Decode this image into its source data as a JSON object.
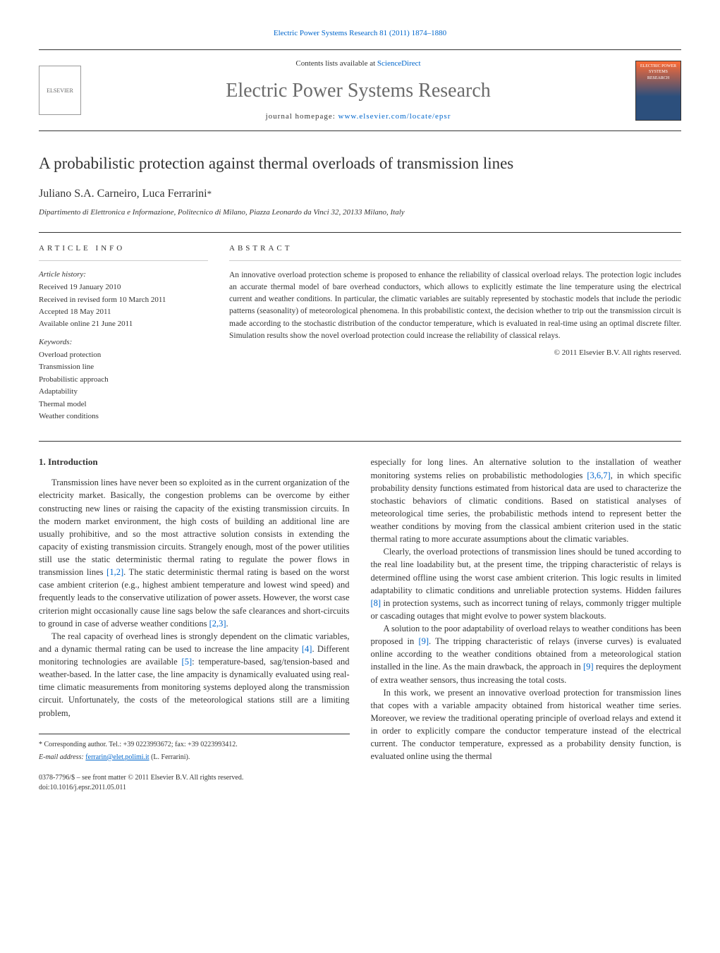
{
  "header": {
    "top_link": "Electric Power Systems Research 81 (2011) 1874–1880",
    "contents_prefix": "Contents lists available at ",
    "contents_link": "ScienceDirect",
    "journal_name": "Electric Power Systems Research",
    "homepage_prefix": "journal homepage: ",
    "homepage_link": "www.elsevier.com/locate/epsr",
    "elsevier_label": "ELSEVIER",
    "cover_label": "ELECTRIC POWER SYSTEMS RESEARCH"
  },
  "article": {
    "title": "A probabilistic protection against thermal overloads of transmission lines",
    "authors": "Juliano S.A. Carneiro, Luca Ferrarini",
    "author_marker": "*",
    "affiliation": "Dipartimento di Elettronica e Informazione, Politecnico di Milano, Piazza Leonardo da Vinci 32, 20133 Milano, Italy"
  },
  "info": {
    "heading": "ARTICLE INFO",
    "history_label": "Article history:",
    "received": "Received 19 January 2010",
    "revised": "Received in revised form 10 March 2011",
    "accepted": "Accepted 18 May 2011",
    "online": "Available online 21 June 2011",
    "keywords_label": "Keywords:",
    "kw1": "Overload protection",
    "kw2": "Transmission line",
    "kw3": "Probabilistic approach",
    "kw4": "Adaptability",
    "kw5": "Thermal model",
    "kw6": "Weather conditions"
  },
  "abstract": {
    "heading": "ABSTRACT",
    "text": "An innovative overload protection scheme is proposed to enhance the reliability of classical overload relays. The protection logic includes an accurate thermal model of bare overhead conductors, which allows to explicitly estimate the line temperature using the electrical current and weather conditions. In particular, the climatic variables are suitably represented by stochastic models that include the periodic patterns (seasonality) of meteorological phenomena. In this probabilistic context, the decision whether to trip out the transmission circuit is made according to the stochastic distribution of the conductor temperature, which is evaluated in real-time using an optimal discrete filter. Simulation results show the novel overload protection could increase the reliability of classical relays.",
    "copyright": "© 2011 Elsevier B.V. All rights reserved."
  },
  "body": {
    "section1_heading": "1. Introduction",
    "col1_p1": "Transmission lines have never been so exploited as in the current organization of the electricity market. Basically, the congestion problems can be overcome by either constructing new lines or raising the capacity of the existing transmission circuits. In the modern market environment, the high costs of building an additional line are usually prohibitive, and so the most attractive solution consists in extending the capacity of existing transmission circuits. Strangely enough, most of the power utilities still use the static deterministic thermal rating to regulate the power flows in transmission lines ",
    "col1_cite1": "[1,2]",
    "col1_p1b": ". The static deterministic thermal rating is based on the worst case ambient criterion (e.g., highest ambient temperature and lowest wind speed) and frequently leads to the conservative utilization of power assets. However, the worst case criterion might occasionally cause line sags below the safe clearances and short-circuits to ground in case of adverse weather conditions ",
    "col1_cite2": "[2,3]",
    "col1_p1c": ".",
    "col1_p2": "The real capacity of overhead lines is strongly dependent on the climatic variables, and a dynamic thermal rating can be used to increase the line ampacity ",
    "col1_cite3": "[4]",
    "col1_p2b": ". Different monitoring technologies are available ",
    "col1_cite4": "[5]",
    "col1_p2c": ": temperature-based, sag/tension-based and weather-based. In the latter case, the line ampacity is dynamically evaluated using real-time climatic measurements from monitoring systems deployed along the transmission circuit. Unfortunately, the costs of the meteorological stations still are a limiting problem,",
    "col2_p1": "especially for long lines. An alternative solution to the installation of weather monitoring systems relies on probabilistic methodologies ",
    "col2_cite1": "[3,6,7]",
    "col2_p1b": ", in which specific probability density functions estimated from historical data are used to characterize the stochastic behaviors of climatic conditions. Based on statistical analyses of meteorological time series, the probabilistic methods intend to represent better the weather conditions by moving from the classical ambient criterion used in the static thermal rating to more accurate assumptions about the climatic variables.",
    "col2_p2": "Clearly, the overload protections of transmission lines should be tuned according to the real line loadability but, at the present time, the tripping characteristic of relays is determined offline using the worst case ambient criterion. This logic results in limited adaptability to climatic conditions and unreliable protection systems. Hidden failures ",
    "col2_cite2": "[8]",
    "col2_p2b": " in protection systems, such as incorrect tuning of relays, commonly trigger multiple or cascading outages that might evolve to power system blackouts.",
    "col2_p3": "A solution to the poor adaptability of overload relays to weather conditions has been proposed in ",
    "col2_cite3": "[9]",
    "col2_p3b": ". The tripping characteristic of relays (inverse curves) is evaluated online according to the weather conditions obtained from a meteorological station installed in the line. As the main drawback, the approach in ",
    "col2_cite4": "[9]",
    "col2_p3c": " requires the deployment of extra weather sensors, thus increasing the total costs.",
    "col2_p4": "In this work, we present an innovative overload protection for transmission lines that copes with a variable ampacity obtained from historical weather time series. Moreover, we review the traditional operating principle of overload relays and extend it in order to explicitly compare the conductor temperature instead of the electrical current. The conductor temperature, expressed as a probability density function, is evaluated online using the thermal"
  },
  "footer": {
    "corr_marker": "*",
    "corr_label": " Corresponding author. Tel.: +39 0223993672; fax: +39 0223993412.",
    "email_label": "E-mail address: ",
    "email": "ferrarin@elet.polimi.it",
    "email_suffix": " (L. Ferrarini).",
    "issn_line": "0378-7796/$ – see front matter © 2011 Elsevier B.V. All rights reserved.",
    "doi_prefix": "doi:",
    "doi": "10.1016/j.epsr.2011.05.011"
  },
  "colors": {
    "link": "#0066cc",
    "text": "#333333",
    "muted": "#6b6b6b"
  }
}
